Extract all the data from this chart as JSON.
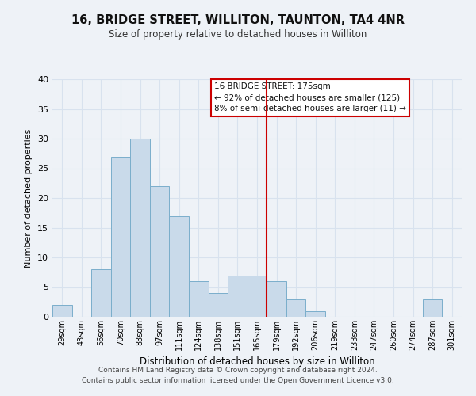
{
  "title": "16, BRIDGE STREET, WILLITON, TAUNTON, TA4 4NR",
  "subtitle": "Size of property relative to detached houses in Williton",
  "xlabel": "Distribution of detached houses by size in Williton",
  "ylabel": "Number of detached properties",
  "bin_labels": [
    "29sqm",
    "43sqm",
    "56sqm",
    "70sqm",
    "83sqm",
    "97sqm",
    "111sqm",
    "124sqm",
    "138sqm",
    "151sqm",
    "165sqm",
    "179sqm",
    "192sqm",
    "206sqm",
    "219sqm",
    "233sqm",
    "247sqm",
    "260sqm",
    "274sqm",
    "287sqm",
    "301sqm"
  ],
  "bar_values": [
    2,
    0,
    8,
    27,
    30,
    22,
    17,
    6,
    4,
    7,
    7,
    6,
    3,
    1,
    0,
    0,
    0,
    0,
    0,
    3,
    0
  ],
  "bar_color": "#c9daea",
  "bar_edge_color": "#7aaecb",
  "ylim": [
    0,
    40
  ],
  "yticks": [
    0,
    5,
    10,
    15,
    20,
    25,
    30,
    35,
    40
  ],
  "vline_color": "#cc0000",
  "annotation_title": "16 BRIDGE STREET: 175sqm",
  "annotation_line1": "← 92% of detached houses are smaller (125)",
  "annotation_line2": "8% of semi-detached houses are larger (11) →",
  "footer1": "Contains HM Land Registry data © Crown copyright and database right 2024.",
  "footer2": "Contains public sector information licensed under the Open Government Licence v3.0.",
  "bg_color": "#eef2f7",
  "grid_color": "#d8e2ee",
  "plot_bg_color": "#eef2f7"
}
